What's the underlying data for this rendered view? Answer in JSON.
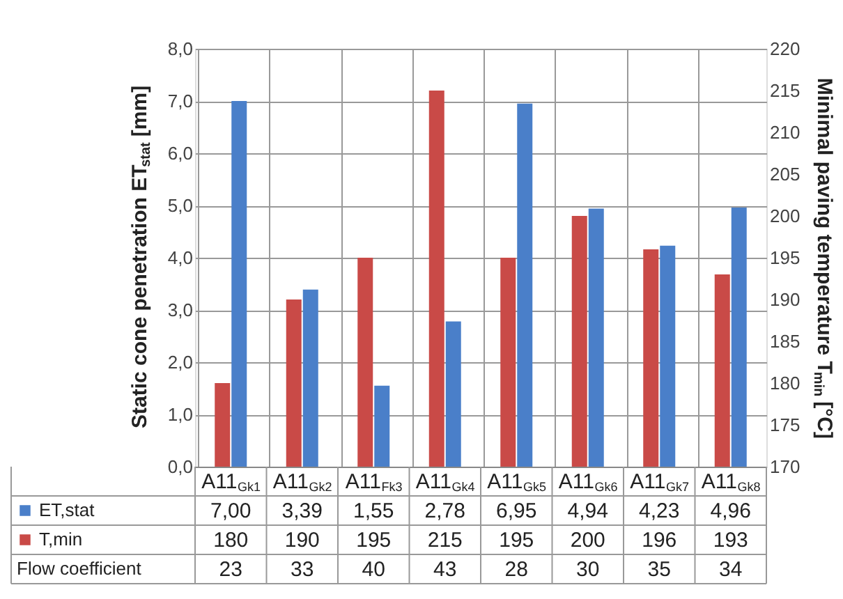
{
  "chart_data": {
    "type": "bar",
    "ylabel": "Static cone penetration ET$_{stat}$ [mm]",
    "y2label": "Minimal paving temperature T$_{min}$ [°C]",
    "categories": [
      "A11$_{Gk1}$",
      "A11$_{Gk2}$",
      "A11$_{Fk3}$",
      "A11$_{Gk4}$",
      "A11$_{Gk5}$",
      "A11$_{Gk6}$",
      "A11$_{Gk7}$",
      "A11$_{Gk8}$"
    ],
    "series": [
      {
        "name": "ET,stat",
        "color": "#4a7fc9",
        "values": [
          7.0,
          3.39,
          1.55,
          2.78,
          6.95,
          4.94,
          4.23,
          4.96
        ],
        "value_labels": [
          "7,00",
          "3,39",
          "1,55",
          "2,78",
          "6,95",
          "4,94",
          "4,23",
          "4,96"
        ]
      },
      {
        "name": "T,min",
        "color": "#c94a47",
        "axis": "y2",
        "values": [
          180,
          190,
          195,
          215,
          195,
          200,
          196,
          193
        ],
        "value_labels": [
          "180",
          "190",
          "195",
          "215",
          "195",
          "200",
          "196",
          "193"
        ]
      },
      {
        "name": "Flow coefficient",
        "type": "other",
        "values": [
          null,
          null,
          null,
          null,
          null,
          null,
          null,
          null
        ],
        "value_labels": [
          "23",
          "33",
          "40",
          "43",
          "28",
          "30",
          "35",
          "34"
        ]
      }
    ],
    "ylim": [
      0,
      8
    ],
    "yticks": [
      {
        "value": 0,
        "label": "0,0"
      },
      {
        "value": 1,
        "label": "1,0"
      },
      {
        "value": 2,
        "label": "2,0"
      },
      {
        "value": 3,
        "label": "3,0"
      },
      {
        "value": 4,
        "label": "4,0"
      },
      {
        "value": 5,
        "label": "5,0"
      },
      {
        "value": 6,
        "label": "6,0"
      },
      {
        "value": 7,
        "label": "7,0"
      },
      {
        "value": 8,
        "label": "8,0"
      }
    ],
    "y2lim": [
      170,
      220
    ],
    "y2ticks": [
      170,
      175,
      180,
      185,
      190,
      195,
      200,
      205,
      210,
      215,
      220
    ],
    "grid": true,
    "legend": "bottom"
  }
}
